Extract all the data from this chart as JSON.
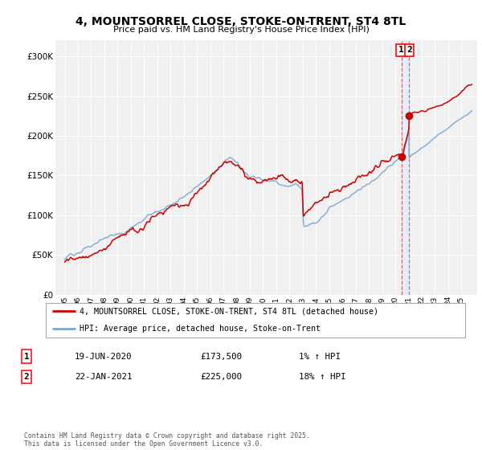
{
  "title": "4, MOUNTSORREL CLOSE, STOKE-ON-TRENT, ST4 8TL",
  "subtitle": "Price paid vs. HM Land Registry's House Price Index (HPI)",
  "legend_line1": "4, MOUNTSORREL CLOSE, STOKE-ON-TRENT, ST4 8TL (detached house)",
  "legend_line2": "HPI: Average price, detached house, Stoke-on-Trent",
  "transaction1_date": "19-JUN-2020",
  "transaction1_price": "£173,500",
  "transaction1_hpi": "1% ↑ HPI",
  "transaction2_date": "22-JAN-2021",
  "transaction2_price": "£225,000",
  "transaction2_hpi": "18% ↑ HPI",
  "note": "Contains HM Land Registry data © Crown copyright and database right 2025.\nThis data is licensed under the Open Government Licence v3.0.",
  "hpi_color": "#7aa8d2",
  "price_color": "#cc0000",
  "dashed_line_color": "#dd4444",
  "shaded_color": "#ddeeff",
  "ylim": [
    0,
    320000
  ],
  "yticks": [
    0,
    50000,
    100000,
    150000,
    200000,
    250000,
    300000
  ],
  "background": "#ffffff",
  "plot_background": "#f0f0f0",
  "t1_year": 2020.46,
  "t2_year": 2021.05,
  "t1_val": 173500,
  "t2_val": 225000,
  "xstart": 1995,
  "xend": 2025
}
